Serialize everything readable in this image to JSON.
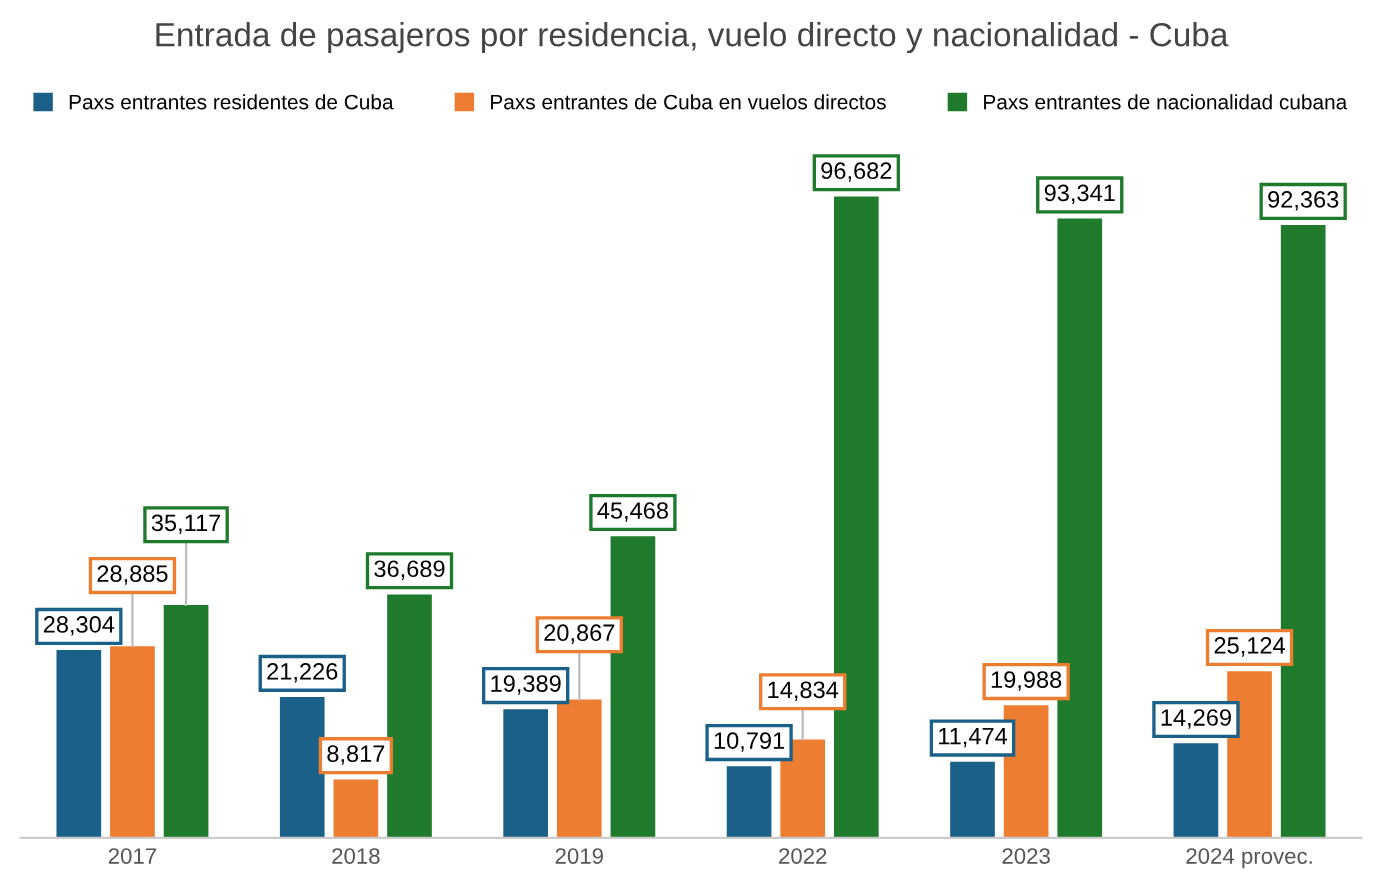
{
  "chart_data": {
    "type": "bar",
    "title": "Entrada de pasajeros por residencia, vuelo directo y nacionalidad - Cuba",
    "categories": [
      "2017",
      "2018",
      "2019",
      "2022",
      "2023",
      "2024 provec."
    ],
    "series": [
      {
        "name": "Paxs entrantes residentes de Cuba",
        "color": "#1b6088",
        "values": [
          28304,
          21226,
          19389,
          10791,
          11474,
          14269
        ],
        "value_labels": [
          "28,304",
          "21,226",
          "19,389",
          "10,791",
          "11,474",
          "14,269"
        ]
      },
      {
        "name": "Paxs entrantes de Cuba en vuelos directos",
        "color": "#ed7d31",
        "values": [
          28885,
          8817,
          20867,
          14834,
          19988,
          25124
        ],
        "value_labels": [
          "28,885",
          "8,817",
          "20,867",
          "14,834",
          "19,988",
          "25,124"
        ]
      },
      {
        "name": "Paxs entrantes de nacionalidad cubana",
        "color": "#1f7a2c",
        "values": [
          35117,
          36689,
          45468,
          96682,
          93341,
          92363
        ],
        "value_labels": [
          "35,117",
          "36,689",
          "45,468",
          "96,682",
          "93,341",
          "92,363"
        ]
      }
    ],
    "legend": "top",
    "grid": false
  }
}
